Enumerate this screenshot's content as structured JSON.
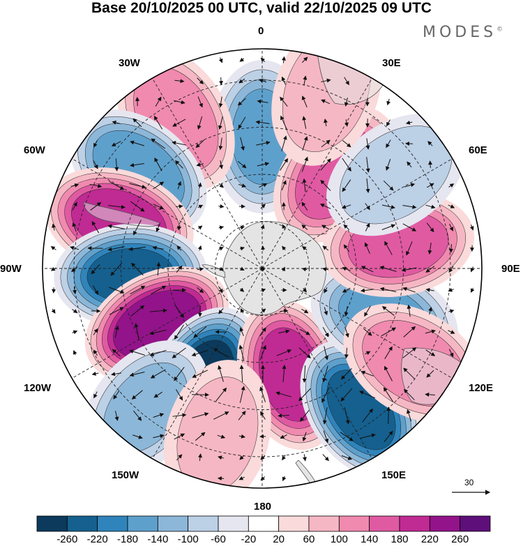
{
  "title": "Base 20/10/2025 00 UTC, valid 22/10/2025 09 UTC",
  "brand": "MODES",
  "brand_mark": "©",
  "longitude_labels": {
    "lon_0": "0",
    "lon_30e": "30E",
    "lon_60e": "60E",
    "lon_90e": "90E",
    "lon_120e": "120E",
    "lon_150e": "150E",
    "lon_180": "180",
    "lon_150w": "150W",
    "lon_120w": "120W",
    "lon_90w": "90W",
    "lon_60w": "60W",
    "lon_30w": "30W"
  },
  "reference_vector": {
    "label": "30"
  },
  "colorbar": {
    "labels": [
      "-260",
      "-220",
      "-180",
      "-140",
      "-100",
      "-60",
      "-20",
      "20",
      "60",
      "100",
      "140",
      "180",
      "220",
      "260"
    ],
    "colors": [
      "#0b3a5c",
      "#15608f",
      "#2f84bb",
      "#5ea0cc",
      "#8cb7d8",
      "#bcd0e6",
      "#e6e6f0",
      "#ffffff",
      "#fadada",
      "#f6b7c4",
      "#f08aaf",
      "#e05aa2",
      "#c02a93",
      "#93138a",
      "#5e0f7a"
    ]
  },
  "anomaly_centers": [
    {
      "lon": 0,
      "lat": -48,
      "value": -140
    },
    {
      "lon": 38,
      "lat": -52,
      "value": 160
    },
    {
      "lon": -30,
      "lat": -35,
      "value": 130
    },
    {
      "lon": -52,
      "lat": -40,
      "value": -170
    },
    {
      "lon": -72,
      "lat": -42,
      "value": 210
    },
    {
      "lon": -93,
      "lat": -48,
      "value": -220
    },
    {
      "lon": -118,
      "lat": -52,
      "value": 250
    },
    {
      "lon": -152,
      "lat": -50,
      "value": -260
    },
    {
      "lon": 165,
      "lat": -55,
      "value": 200
    },
    {
      "lon": 145,
      "lat": -35,
      "value": -230
    },
    {
      "lon": 112,
      "lat": -48,
      "value": -140
    },
    {
      "lon": 80,
      "lat": -46,
      "value": 160
    },
    {
      "lon": 122,
      "lat": -33,
      "value": 130
    },
    {
      "lon": 55,
      "lat": -38,
      "value": -80
    },
    {
      "lon": 20,
      "lat": -30,
      "value": 80
    },
    {
      "lon": -140,
      "lat": -32,
      "value": -100
    },
    {
      "lon": -165,
      "lat": -35,
      "value": 60
    }
  ]
}
